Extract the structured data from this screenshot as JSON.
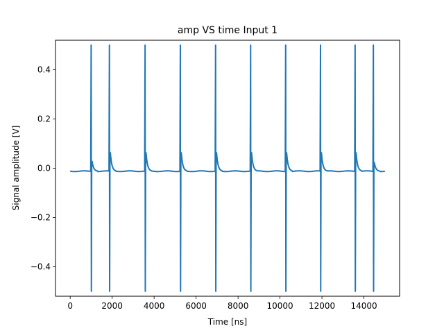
{
  "chart_data": {
    "type": "line",
    "title": "amp VS time Input 1",
    "xlabel": "Time [ns]",
    "ylabel": "Signal amplitude [V]",
    "xlim": [
      -700,
      15700
    ],
    "ylim": [
      -0.52,
      0.52
    ],
    "x_ticks": [
      0,
      2000,
      4000,
      6000,
      8000,
      10000,
      12000,
      14000
    ],
    "x_tick_labels": [
      "0",
      "2000",
      "4000",
      "6000",
      "8000",
      "10000",
      "12000",
      "14000"
    ],
    "y_ticks": [
      -0.4,
      -0.2,
      0.0,
      0.2,
      0.4
    ],
    "y_tick_labels": [
      "−0.4",
      "−0.2",
      "0.0",
      "0.2",
      "0.4"
    ],
    "grid": false,
    "legend": "none",
    "series": [
      {
        "color": "#1f77b4",
        "baseline": -0.012,
        "x_start": 0,
        "x_end": 15000,
        "pulse_times": [
          1000,
          1870,
          3570,
          5250,
          6930,
          8600,
          10270,
          11930,
          13580,
          14450
        ],
        "pulse_max": 0.5,
        "pulse_min": -0.5,
        "overshoot": [
          0.04,
          0.075,
          0.075,
          0.075,
          0.075,
          0.075,
          0.075,
          0.075,
          0.075,
          0.035
        ]
      }
    ]
  }
}
